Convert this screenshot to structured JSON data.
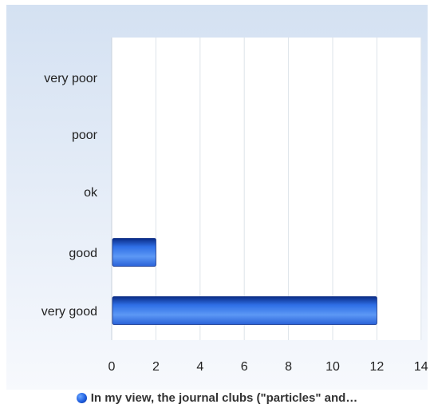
{
  "chart_data": {
    "type": "bar",
    "orientation": "horizontal",
    "categories": [
      "very poor",
      "poor",
      "ok",
      "good",
      "very good"
    ],
    "series": [
      {
        "name": "In my view, the journal clubs (\"particles\" and…",
        "values": [
          0,
          0,
          0,
          2,
          12
        ]
      }
    ],
    "x_ticks": [
      "0",
      "2",
      "4",
      "6",
      "8",
      "10",
      "12",
      "14"
    ],
    "xlim": [
      0,
      14
    ],
    "grid": true,
    "legend_position": "bottom",
    "colors": {
      "bar_dark": "#0a2b85",
      "bar_mid": "#2f6fe6",
      "bar_light": "#5c98f5",
      "plot_bg": "#ffffff",
      "frame_bg_top": "#d4e1f2",
      "frame_bg_bottom": "#f7f9fd",
      "grid": "#dde3ea"
    }
  }
}
